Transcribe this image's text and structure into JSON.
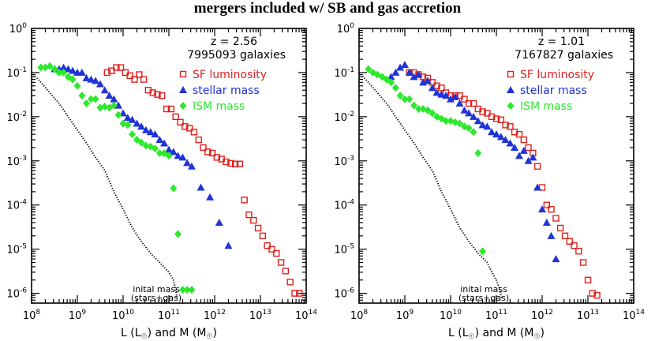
{
  "suptitle": "mergers included w/ SB and gas accretion",
  "colors": {
    "sf": "#e0201c",
    "stellar": "#1f33d6",
    "ism": "#2ee82e",
    "initial": "#000000"
  },
  "chart_data": [
    {
      "type": "scatter",
      "xscale": "log",
      "yscale": "log",
      "xlim": [
        100000000.0,
        100000000000000.0
      ],
      "ylim": [
        6e-07,
        1
      ],
      "x_ticks": [
        8,
        9,
        10,
        11,
        12,
        13,
        14
      ],
      "y_ticks": [
        0,
        -1,
        -2,
        -3,
        -4,
        -5,
        -6
      ],
      "xlabel_parts": [
        "L (L",
        "☉",
        ") and M (M",
        "☉",
        ")"
      ],
      "redshift_label": "z = 2.56",
      "galaxy_count": "7995093 galaxies",
      "annotation_line1": "inital mass",
      "annotation_line2": "(stars+gas)",
      "legend": [
        "SF luminosity",
        "stellar mass",
        "ISM mass"
      ],
      "series": [
        {
          "name": "SF luminosity",
          "marker": "open-square",
          "color": "#e0201c",
          "x": [
            4500000000.0,
            5600000000.0,
            7100000000.0,
            8900000000.0,
            11200000000.0,
            14100000000.0,
            17800000000.0,
            22400000000.0,
            28200000000.0,
            35500000000.0,
            44700000000.0,
            56200000000.0,
            70800000000.0,
            89100000000.0,
            112000000000.0,
            141000000000.0,
            178000000000.0,
            224000000000.0,
            282000000000.0,
            355000000000.0,
            447000000000.0,
            562000000000.0,
            708000000000.0,
            891000000000.0,
            1120000000000.0,
            1410000000000.0,
            1780000000000.0,
            2240000000000.0,
            2820000000000.0,
            3550000000000.0,
            4470000000000.0,
            5620000000000.0,
            7080000000000.0,
            8910000000000.0,
            11200000000000.0,
            14100000000000.0,
            17800000000000.0,
            22400000000000.0,
            28200000000000.0,
            35500000000000.0,
            44700000000000.0,
            56200000000000.0,
            70800000000000.0
          ],
          "y": [
            0.1,
            0.11,
            0.13,
            0.13,
            0.1,
            0.085,
            0.07,
            0.09,
            0.07,
            0.04,
            0.035,
            0.032,
            0.03,
            0.015,
            0.015,
            0.01,
            0.0075,
            0.006,
            0.0055,
            0.0045,
            0.003,
            0.002,
            0.0016,
            0.0015,
            0.0012,
            0.0011,
            0.00095,
            0.00088,
            0.00085,
            0.00085,
            0.00013,
            6e-05,
            4.5e-05,
            3e-05,
            2e-05,
            1.2e-05,
            1e-05,
            8e-06,
            5e-06,
            3.2e-06,
            1.8e-06,
            1e-06,
            1e-06
          ]
        },
        {
          "name": "stellar mass",
          "marker": "filled-triangle",
          "color": "#1f33d6",
          "x": [
            320000000.0,
            400000000.0,
            500000000.0,
            630000000.0,
            790000000.0,
            1000000000.0,
            1260000000.0,
            1580000000.0,
            2000000000.0,
            2500000000.0,
            3160000000.0,
            3980000000.0,
            5000000000.0,
            6300000000.0,
            7900000000.0,
            10000000000.0,
            12600000000.0,
            15800000000.0,
            20000000000.0,
            25000000000.0,
            31600000000.0,
            39800000000.0,
            50000000000.0,
            63000000000.0,
            79000000000.0,
            100000000000.0,
            126000000000.0,
            158000000000.0,
            200000000000.0,
            251000000000.0,
            316000000000.0,
            500000000000.0,
            790000000000.0,
            1260000000000.0,
            2000000000000.0
          ],
          "y": [
            0.12,
            0.12,
            0.13,
            0.12,
            0.11,
            0.1,
            0.1,
            0.075,
            0.07,
            0.065,
            0.055,
            0.04,
            0.03,
            0.025,
            0.018,
            0.012,
            0.0095,
            0.0085,
            0.007,
            0.006,
            0.005,
            0.0045,
            0.004,
            0.003,
            0.0025,
            0.0018,
            0.0016,
            0.0013,
            0.0012,
            0.0009,
            0.00075,
            0.00025,
            0.00015,
            4e-05,
            1.2e-05
          ]
        },
        {
          "name": "ISM mass",
          "marker": "filled-diamond",
          "color": "#2ee82e",
          "x": [
            160000000.0,
            200000000.0,
            250000000.0,
            320000000.0,
            400000000.0,
            500000000.0,
            630000000.0,
            790000000.0,
            1000000000.0,
            1260000000.0,
            1580000000.0,
            2000000000.0,
            2500000000.0,
            3160000000.0,
            3980000000.0,
            5000000000.0,
            6300000000.0,
            7900000000.0,
            10000000000.0,
            12600000000.0,
            15800000000.0,
            20000000000.0,
            25000000000.0,
            31600000000.0,
            39800000000.0,
            50000000000.0,
            63000000000.0,
            79000000000.0,
            100000000000.0,
            126000000000.0,
            158000000000.0,
            200000000000.0,
            251000000000.0,
            316000000000.0
          ],
          "y": [
            0.13,
            0.13,
            0.14,
            0.12,
            0.1,
            0.1,
            0.08,
            0.07,
            0.05,
            0.03,
            0.02,
            0.025,
            0.025,
            0.016,
            0.017,
            0.016,
            0.018,
            0.011,
            0.007,
            0.0065,
            0.004,
            0.003,
            0.0026,
            0.0022,
            0.0021,
            0.0019,
            0.0015,
            0.0015,
            0.0013,
            0.00024,
            2.2e-05,
            1.2e-06,
            1.2e-06,
            1.2e-06
          ]
        },
        {
          "name": "initial mass (stars+gas)",
          "marker": "dotted-line",
          "color": "#000000",
          "x": [
            100000000.0,
            160000000.0,
            250000000.0,
            400000000.0,
            630000000.0,
            1000000000.0,
            1600000000.0,
            2500000000.0,
            4000000000.0,
            6300000000.0,
            10000000000.0,
            16000000000.0,
            25000000000.0,
            40000000000.0,
            63000000000.0,
            100000000000.0,
            126000000000.0,
            141000000000.0,
            150000000000.0
          ],
          "y": [
            0.1,
            0.06,
            0.035,
            0.02,
            0.01,
            0.005,
            0.0025,
            0.0012,
            0.0006,
            0.0002,
            8e-05,
            3e-05,
            1.5e-05,
            8e-06,
            5e-06,
            3e-06,
            2e-06,
            1.2e-06,
            8e-07
          ]
        }
      ]
    },
    {
      "type": "scatter",
      "xscale": "log",
      "yscale": "log",
      "xlim": [
        100000000.0,
        100000000000000.0
      ],
      "ylim": [
        6e-07,
        1
      ],
      "x_ticks": [
        8,
        9,
        10,
        11,
        12,
        13,
        14
      ],
      "y_ticks": [
        0,
        -1,
        -2,
        -3,
        -4,
        -5,
        -6
      ],
      "xlabel_parts": [
        "L (L",
        "☉",
        ") and M (M",
        "☉",
        ")"
      ],
      "redshift_label": "z = 1.01",
      "galaxy_count": "7167827 galaxies",
      "annotation_line1": "inital mass",
      "annotation_line2": "(stars+gas)",
      "legend": [
        "SF luminosity",
        "stellar mass",
        "ISM mass"
      ],
      "series": [
        {
          "name": "SF luminosity",
          "marker": "open-square",
          "color": "#e0201c",
          "x": [
            1260000000.0,
            1580000000.0,
            2000000000.0,
            2500000000.0,
            3160000000.0,
            3980000000.0,
            5000000000.0,
            6300000000.0,
            7900000000.0,
            10000000000.0,
            12600000000.0,
            15800000000.0,
            20000000000.0,
            25000000000.0,
            31600000000.0,
            39800000000.0,
            50000000000.0,
            63000000000.0,
            79000000000.0,
            100000000000.0,
            126000000000.0,
            158000000000.0,
            200000000000.0,
            250000000000.0,
            316000000000.0,
            398000000000.0,
            500000000000.0,
            630000000000.0,
            790000000000.0,
            1000000000000.0,
            1260000000000.0,
            1580000000000.0,
            2000000000000.0,
            2500000000000.0,
            3160000000000.0,
            3980000000000.0,
            5000000000000.0,
            6300000000000.0,
            7900000000000.0,
            10000000000000.0,
            12600000000000.0,
            15800000000000.0
          ],
          "y": [
            0.1,
            0.1,
            0.09,
            0.08,
            0.075,
            0.06,
            0.05,
            0.045,
            0.035,
            0.03,
            0.03,
            0.03,
            0.025,
            0.02,
            0.02,
            0.015,
            0.013,
            0.012,
            0.01,
            0.009,
            0.0085,
            0.0065,
            0.006,
            0.0045,
            0.004,
            0.003,
            0.002,
            0.0015,
            0.00075,
            0.00025,
            0.0001,
            8e-05,
            5e-05,
            3e-05,
            2e-05,
            1.5e-05,
            1.2e-05,
            9e-06,
            5e-06,
            2e-06,
            1e-06,
            9e-07
          ]
        },
        {
          "name": "stellar mass",
          "marker": "filled-triangle",
          "color": "#1f33d6",
          "x": [
            500000000.0,
            630000000.0,
            790000000.0,
            1000000000.0,
            1260000000.0,
            1580000000.0,
            2000000000.0,
            2500000000.0,
            3160000000.0,
            3980000000.0,
            5000000000.0,
            6300000000.0,
            7900000000.0,
            10000000000.0,
            12600000000.0,
            15800000000.0,
            20000000000.0,
            25000000000.0,
            31600000000.0,
            39800000000.0,
            50000000000.0,
            63000000000.0,
            79000000000.0,
            100000000000.0,
            126000000000.0,
            158000000000.0,
            200000000000.0,
            250000000000.0,
            316000000000.0,
            398000000000.0,
            500000000000.0,
            630000000000.0,
            790000000000.0,
            1000000000000.0,
            1260000000000.0,
            1580000000000.0,
            2000000000000.0
          ],
          "y": [
            0.08,
            0.1,
            0.13,
            0.15,
            0.1,
            0.08,
            0.09,
            0.06,
            0.065,
            0.045,
            0.035,
            0.032,
            0.03,
            0.025,
            0.028,
            0.02,
            0.014,
            0.012,
            0.01,
            0.008,
            0.0065,
            0.006,
            0.0045,
            0.004,
            0.0035,
            0.003,
            0.0025,
            0.002,
            0.0013,
            0.0017,
            0.001,
            0.0012,
            0.00025,
            8e-05,
            4e-05,
            2e-05,
            6e-06
          ]
        },
        {
          "name": "ISM mass",
          "marker": "filled-diamond",
          "color": "#2ee82e",
          "x": [
            160000000.0,
            200000000.0,
            250000000.0,
            320000000.0,
            400000000.0,
            500000000.0,
            630000000.0,
            790000000.0,
            1000000000.0,
            1260000000.0,
            1580000000.0,
            2000000000.0,
            2500000000.0,
            3160000000.0,
            3980000000.0,
            5000000000.0,
            6300000000.0,
            7900000000.0,
            10000000000.0,
            12600000000.0,
            15800000000.0,
            20000000000.0,
            25000000000.0,
            31600000000.0,
            39800000000.0,
            50000000000.0
          ],
          "y": [
            0.12,
            0.1,
            0.09,
            0.08,
            0.07,
            0.06,
            0.045,
            0.03,
            0.025,
            0.025,
            0.018,
            0.015,
            0.015,
            0.014,
            0.012,
            0.01,
            0.009,
            0.008,
            0.008,
            0.0075,
            0.007,
            0.006,
            0.0055,
            0.0045,
            0.0015,
            9e-06
          ]
        },
        {
          "name": "initial mass (stars+gas)",
          "marker": "dotted-line",
          "color": "#000000",
          "x": [
            100000000.0,
            160000000.0,
            250000000.0,
            400000000.0,
            630000000.0,
            1000000000.0,
            1600000000.0,
            2500000000.0,
            4000000000.0,
            6300000000.0,
            10000000000.0,
            16000000000.0,
            25000000000.0,
            40000000000.0,
            63000000000.0,
            80000000000.0,
            100000000000.0,
            120000000000.0,
            130000000000.0
          ],
          "y": [
            0.1,
            0.06,
            0.035,
            0.02,
            0.01,
            0.005,
            0.0025,
            0.0012,
            0.0006,
            0.0002,
            8e-05,
            3e-05,
            1.5e-05,
            8e-06,
            5e-06,
            3e-06,
            2e-06,
            1.2e-06,
            8e-07
          ]
        }
      ]
    }
  ]
}
